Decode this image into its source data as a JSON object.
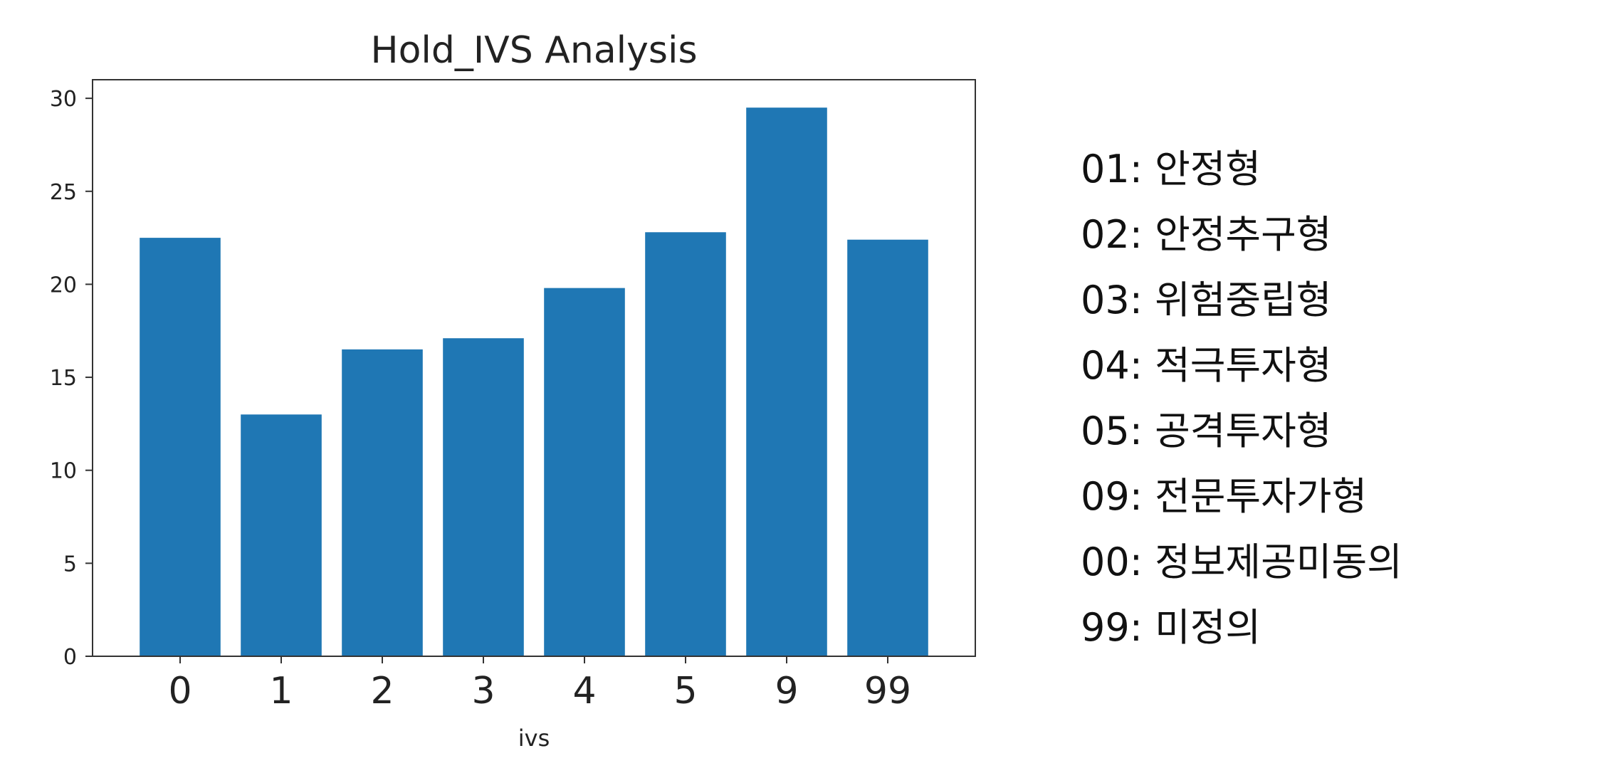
{
  "chart_data": {
    "type": "bar",
    "title": "Hold_IVS Analysis",
    "xlabel": "ivs",
    "ylabel": "",
    "categories": [
      "0",
      "1",
      "2",
      "3",
      "4",
      "5",
      "9",
      "99"
    ],
    "values": [
      22.5,
      13.0,
      16.5,
      17.1,
      19.8,
      22.8,
      29.5,
      22.4
    ],
    "ylim": [
      0,
      31
    ],
    "yticks": [
      0,
      5,
      10,
      15,
      20,
      25,
      30
    ],
    "grid": false,
    "bar_color": "#1f77b4"
  },
  "legend": {
    "items": [
      "01: 안정형",
      "02: 안정추구형",
      "03: 위험중립형",
      "04: 적극투자형",
      "05: 공격투자형",
      "09: 전문투자가형",
      "00: 정보제공미동의",
      "99: 미정의"
    ]
  }
}
